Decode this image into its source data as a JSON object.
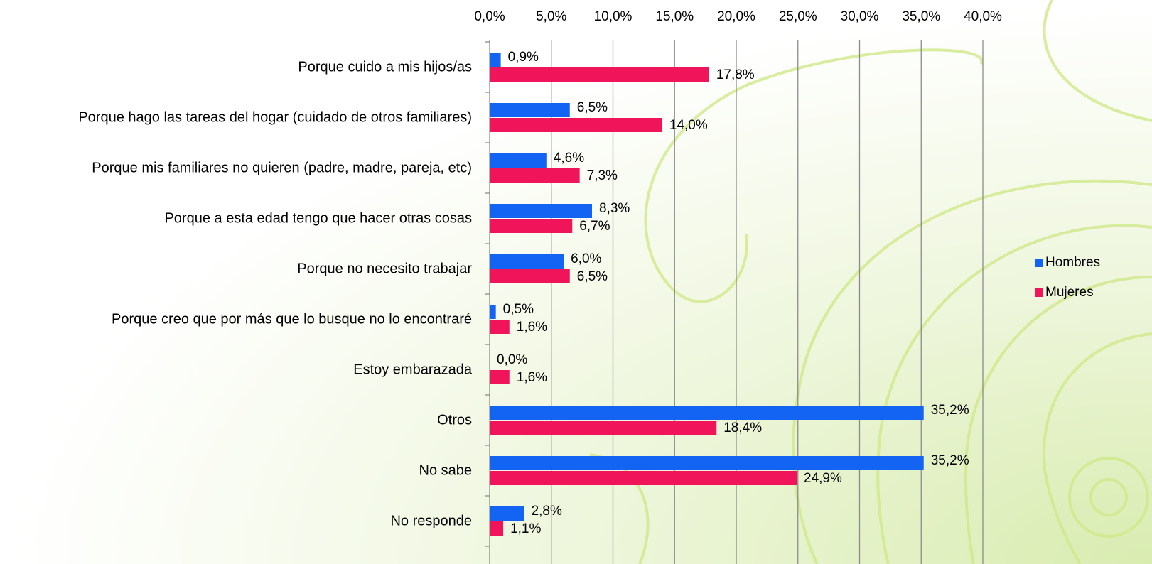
{
  "chart_data": {
    "type": "hbar",
    "categories": [
      "Porque cuido a mis hijos/as",
      "Porque hago las tareas del hogar (cuidado de otros familiares)",
      "Porque mis familiares no quieren (padre, madre, pareja, etc)",
      "Porque a esta edad tengo que hacer otras cosas",
      "Porque no necesito trabajar",
      "Porque creo que por más que lo busque no lo encontraré",
      "Estoy embarazada",
      "Otros",
      "No sabe",
      "No responde"
    ],
    "series": [
      {
        "name": "Hombres",
        "color": "#1464f4",
        "values": [
          0.9,
          6.5,
          4.6,
          8.3,
          6.0,
          0.5,
          0.0,
          35.2,
          35.2,
          2.8
        ],
        "value_labels": [
          "0,9%",
          "6,5%",
          "4,6%",
          "8,3%",
          "6,0%",
          "0,5%",
          "0,0%",
          "35,2%",
          "35,2%",
          "2,8%"
        ]
      },
      {
        "name": "Mujeres",
        "color": "#f0145a",
        "values": [
          17.8,
          14.0,
          7.3,
          6.7,
          6.5,
          1.6,
          1.6,
          18.4,
          24.9,
          1.1
        ],
        "value_labels": [
          "17,8%",
          "14,0%",
          "7,3%",
          "6,7%",
          "6,5%",
          "1,6%",
          "1,6%",
          "18,4%",
          "24,9%",
          "1,1%"
        ]
      }
    ],
    "xlim": [
      0,
      40
    ],
    "xticks": [
      {
        "value": 0,
        "label": "0,0%"
      },
      {
        "value": 5,
        "label": "5,0%"
      },
      {
        "value": 10,
        "label": "10,0%"
      },
      {
        "value": 15,
        "label": "15,0%"
      },
      {
        "value": 20,
        "label": "20,0%"
      },
      {
        "value": 25,
        "label": "25,0%"
      },
      {
        "value": 30,
        "label": "30,0%"
      },
      {
        "value": 35,
        "label": "35,0%"
      },
      {
        "value": 40,
        "label": "40,0%"
      }
    ],
    "grid": true,
    "legend": "right"
  }
}
